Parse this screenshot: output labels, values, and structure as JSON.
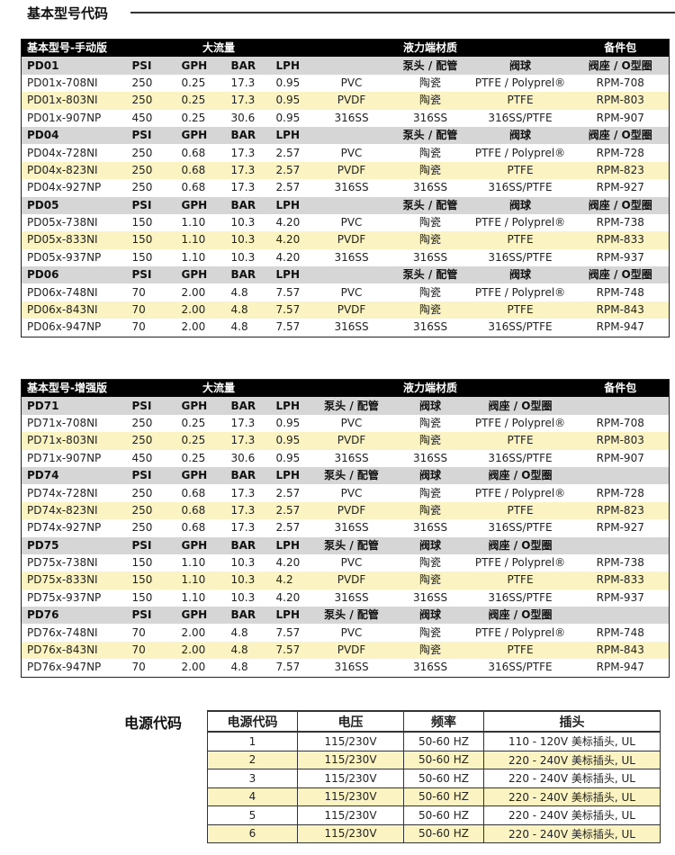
{
  "section_title": "基本型号代码",
  "tables": [
    {
      "header": [
        "基本型号-手动版",
        "大流量",
        "液力端材质",
        "备件包"
      ],
      "subheader_cols": [
        "PSI",
        "GPH",
        "BAR",
        "LPH",
        "",
        "泵头 / 配管",
        "阀球",
        "阀座 / O型圈"
      ],
      "groups": [
        {
          "name": "PD01",
          "rows": [
            [
              "PD01x-708NI",
              "250",
              "0.25",
              "17.3",
              "0.95",
              "PVC",
              "陶瓷",
              "PTFE / Polyprel®",
              "RPM-708"
            ],
            [
              "PD01x-803NI",
              "250",
              "0.25",
              "17.3",
              "0.95",
              "PVDF",
              "陶瓷",
              "PTFE",
              "RPM-803"
            ],
            [
              "PD01x-907NP",
              "450",
              "0.25",
              "30.6",
              "0.95",
              "316SS",
              "316SS",
              "316SS/PTFE",
              "RPM-907"
            ]
          ]
        },
        {
          "name": "PD04",
          "rows": [
            [
              "PD04x-728NI",
              "250",
              "0.68",
              "17.3",
              "2.57",
              "PVC",
              "陶瓷",
              "PTFE / Polyprel®",
              "RPM-728"
            ],
            [
              "PD04x-823NI",
              "250",
              "0.68",
              "17.3",
              "2.57",
              "PVDF",
              "陶瓷",
              "PTFE",
              "RPM-823"
            ],
            [
              "PD04x-927NP",
              "250",
              "0.68",
              "17.3",
              "2.57",
              "316SS",
              "316SS",
              "316SS/PTFE",
              "RPM-927"
            ]
          ]
        },
        {
          "name": "PD05",
          "rows": [
            [
              "PD05x-738NI",
              "150",
              "1.10",
              "10.3",
              "4.20",
              "PVC",
              "陶瓷",
              "PTFE / Polyprel®",
              "RPM-738"
            ],
            [
              "PD05x-833NI",
              "150",
              "1.10",
              "10.3",
              "4.20",
              "PVDF",
              "陶瓷",
              "PTFE",
              "RPM-833"
            ],
            [
              "PD05x-937NP",
              "150",
              "1.10",
              "10.3",
              "4.20",
              "316SS",
              "316SS",
              "316SS/PTFE",
              "RPM-937"
            ]
          ]
        },
        {
          "name": "PD06",
          "rows": [
            [
              "PD06x-748NI",
              "70",
              "2.00",
              "4.8",
              "7.57",
              "PVC",
              "陶瓷",
              "PTFE / Polyprel®",
              "RPM-748"
            ],
            [
              "PD06x-843NI",
              "70",
              "2.00",
              "4.8",
              "7.57",
              "PVDF",
              "陶瓷",
              "PTFE",
              "RPM-843"
            ],
            [
              "PD06x-947NP",
              "70",
              "2.00",
              "4.8",
              "7.57",
              "316SS",
              "316SS",
              "316SS/PTFE",
              "RPM-947"
            ]
          ]
        }
      ]
    },
    {
      "header": [
        "基本型号-增强版",
        "大流量",
        "液力端材质",
        "备件包"
      ],
      "subheader_cols": [
        "PSI",
        "GPH",
        "BAR",
        "LPH",
        "泵头 / 配管",
        "阀球",
        "阀座 / O型圈",
        ""
      ],
      "groups": [
        {
          "name": "PD71",
          "rows": [
            [
              "PD71x-708NI",
              "250",
              "0.25",
              "17.3",
              "0.95",
              "PVC",
              "陶瓷",
              "PTFE / Polyprel®",
              "RPM-708"
            ],
            [
              "PD71x-803NI",
              "250",
              "0.25",
              "17.3",
              "0.95",
              "PVDF",
              "陶瓷",
              "PTFE",
              "RPM-803"
            ],
            [
              "PD71x-907NP",
              "450",
              "0.25",
              "30.6",
              "0.95",
              "316SS",
              "316SS",
              "316SS/PTFE",
              "RPM-907"
            ]
          ]
        },
        {
          "name": "PD74",
          "rows": [
            [
              "PD74x-728NI",
              "250",
              "0.68",
              "17.3",
              "2.57",
              "PVC",
              "陶瓷",
              "PTFE / Polyprel®",
              "RPM-728"
            ],
            [
              "PD74x-823NI",
              "250",
              "0.68",
              "17.3",
              "2.57",
              "PVDF",
              "陶瓷",
              "PTFE",
              "RPM-823"
            ],
            [
              "PD74x-927NP",
              "250",
              "0.68",
              "17.3",
              "2.57",
              "316SS",
              "316SS",
              "316SS/PTFE",
              "RPM-927"
            ]
          ]
        },
        {
          "name": "PD75",
          "rows": [
            [
              "PD75x-738NI",
              "150",
              "1.10",
              "10.3",
              "4.20",
              "PVC",
              "陶瓷",
              "PTFE / Polyprel®",
              "RPM-738"
            ],
            [
              "PD75x-833NI",
              "150",
              "1.10",
              "10.3",
              "4.2",
              "PVDF",
              "陶瓷",
              "PTFE",
              "RPM-833"
            ],
            [
              "PD75x-937NP",
              "150",
              "1.10",
              "10.3",
              "4.20",
              "316SS",
              "316SS",
              "316SS/PTFE",
              "RPM-937"
            ]
          ]
        },
        {
          "name": "PD76",
          "rows": [
            [
              "PD76x-748NI",
              "70",
              "2.00",
              "4.8",
              "7.57",
              "PVC",
              "陶瓷",
              "PTFE / Polyprel®",
              "RPM-748"
            ],
            [
              "PD76x-843NI",
              "70",
              "2.00",
              "4.8",
              "7.57",
              "PVDF",
              "陶瓷",
              "PTFE",
              "RPM-843"
            ],
            [
              "PD76x-947NP",
              "70",
              "2.00",
              "4.8",
              "7.57",
              "316SS",
              "316SS",
              "316SS/PTFE",
              "RPM-947"
            ]
          ]
        }
      ]
    }
  ],
  "power": {
    "title": "电源代码",
    "headers": [
      "电源代码",
      "电压",
      "频率",
      "插头"
    ],
    "rows": [
      [
        "1",
        "115/230V",
        "50-60 HZ",
        "110 - 120V 美标插头, UL"
      ],
      [
        "2",
        "115/230V",
        "50-60 HZ",
        "220 - 240V 美标插头, UL"
      ],
      [
        "3",
        "115/230V",
        "50-60 HZ",
        "220 - 240V 美标插头, UL"
      ],
      [
        "4",
        "115/230V",
        "50-60 HZ",
        "220 - 240V 美标插头, UL"
      ],
      [
        "5",
        "115/230V",
        "50-60 HZ",
        "220 - 240V 美标插头, UL"
      ],
      [
        "6",
        "115/230V",
        "50-60 HZ",
        "220 - 240V 美标插头, UL"
      ]
    ]
  },
  "colors": {
    "highlight": "#fbf4c2",
    "subheader": "#d6d6d6",
    "header": "#000000"
  }
}
